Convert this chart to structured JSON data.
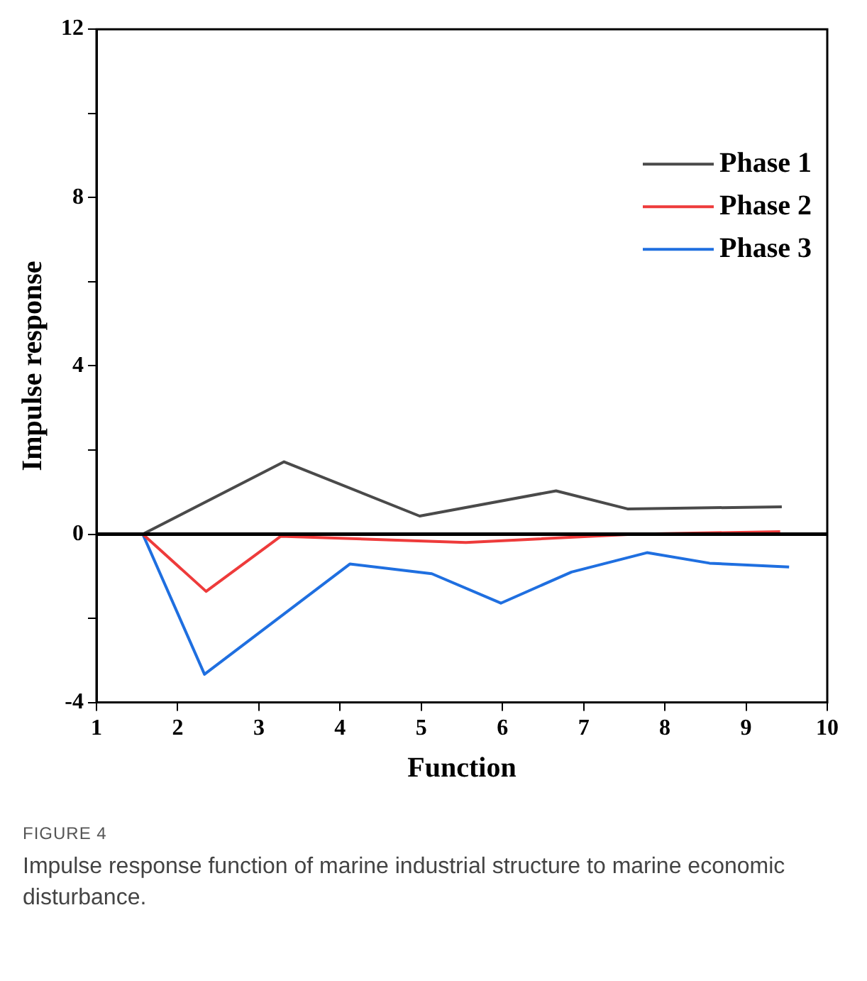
{
  "chart_data": {
    "type": "line",
    "xlabel": "Function",
    "ylabel": "Impulse response",
    "xlim": [
      1,
      10
    ],
    "xticks": [
      1,
      2,
      3,
      4,
      5,
      6,
      7,
      8,
      9,
      10
    ],
    "ylim": [
      -4,
      12
    ],
    "yticks": [
      -4,
      {
        "value": -2,
        "label": null
      },
      0,
      {
        "value": 2,
        "label": null
      },
      4,
      {
        "value": 6,
        "label": null
      },
      8,
      {
        "value": 10,
        "label": null
      },
      12
    ],
    "series": [
      {
        "name": "Phase 1",
        "color": "#4a4a4a",
        "x": [
          1.57,
          3.31,
          4.98,
          6.66,
          7.54,
          9.44
        ],
        "values": [
          0,
          1.72,
          0.43,
          1.03,
          0.6,
          0.65
        ]
      },
      {
        "name": "Phase 2",
        "color": "#ee3b3b",
        "x": [
          1.57,
          2.35,
          3.27,
          5.55,
          7.63,
          9.42
        ],
        "values": [
          0,
          -1.36,
          -0.05,
          -0.2,
          0,
          0.06
        ]
      },
      {
        "name": "Phase 3",
        "color": "#1f6fe0",
        "x": [
          1.57,
          2.33,
          4.12,
          5.13,
          5.98,
          6.85,
          7.78,
          8.55,
          9.53
        ],
        "values": [
          0,
          -3.33,
          -0.71,
          -0.94,
          -1.64,
          -0.9,
          -0.44,
          -0.69,
          -0.78
        ]
      }
    ],
    "ref_lines": [
      {
        "axis": "y",
        "value": 0,
        "color": "#000000"
      }
    ],
    "legend": "top right",
    "grid": false,
    "marker": "none",
    "line_style": "solid",
    "annotations": [
      "FIGURE 4",
      "Impulse response function of marine industrial structure to marine economic disturbance."
    ]
  }
}
